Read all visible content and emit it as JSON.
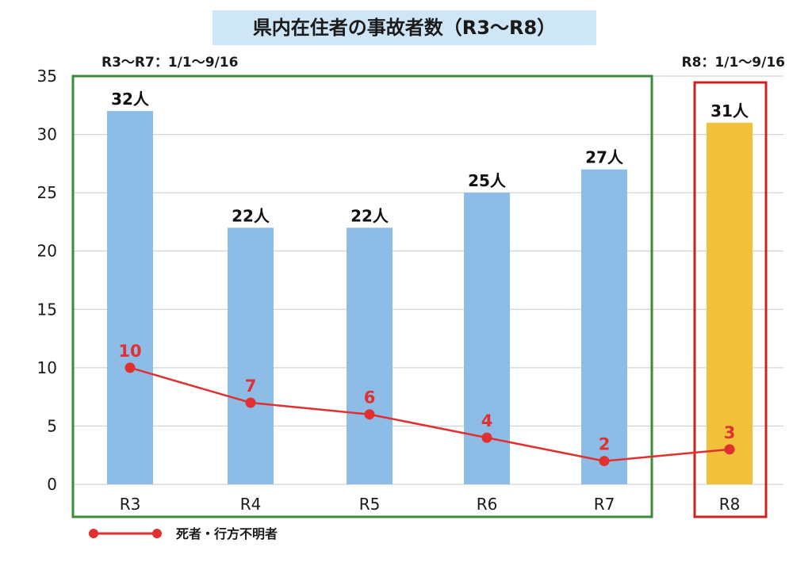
{
  "title": "県内在住者の事故者数（R3〜R8）",
  "notes": {
    "group_a": "R3〜R7：1/1〜9/16",
    "group_b": "R8：1/1〜9/16"
  },
  "colors": {
    "bar_main": "#8dbde6",
    "bar_highlight": "#f3c03a",
    "line": "#e03030",
    "group_a_box": "#3a8a3a",
    "group_b_box": "#cc2222",
    "title_bg": "#cfe6f7",
    "grid": "#c9c9c9"
  },
  "chart_data": {
    "type": "bar",
    "title": "県内在住者の事故者数（R3〜R8）",
    "categories": [
      "R3",
      "R4",
      "R5",
      "R6",
      "R7",
      "R8"
    ],
    "ylim": [
      0,
      35
    ],
    "yticks": [
      0,
      5,
      10,
      15,
      20,
      25,
      30,
      35
    ],
    "grid": true,
    "legend_position": "bottom-left",
    "series": [
      {
        "values": [
          32,
          22,
          22,
          25,
          27,
          31
        ],
        "labels": [
          "32人",
          "22人",
          "22人",
          "25人",
          "27人",
          "31人"
        ]
      },
      {
        "name": "死者・行方不明者",
        "type": "line",
        "values": [
          10,
          7,
          6,
          4,
          2,
          3
        ],
        "labels": [
          "10",
          "7",
          "6",
          "4",
          "2",
          "3"
        ]
      }
    ]
  }
}
